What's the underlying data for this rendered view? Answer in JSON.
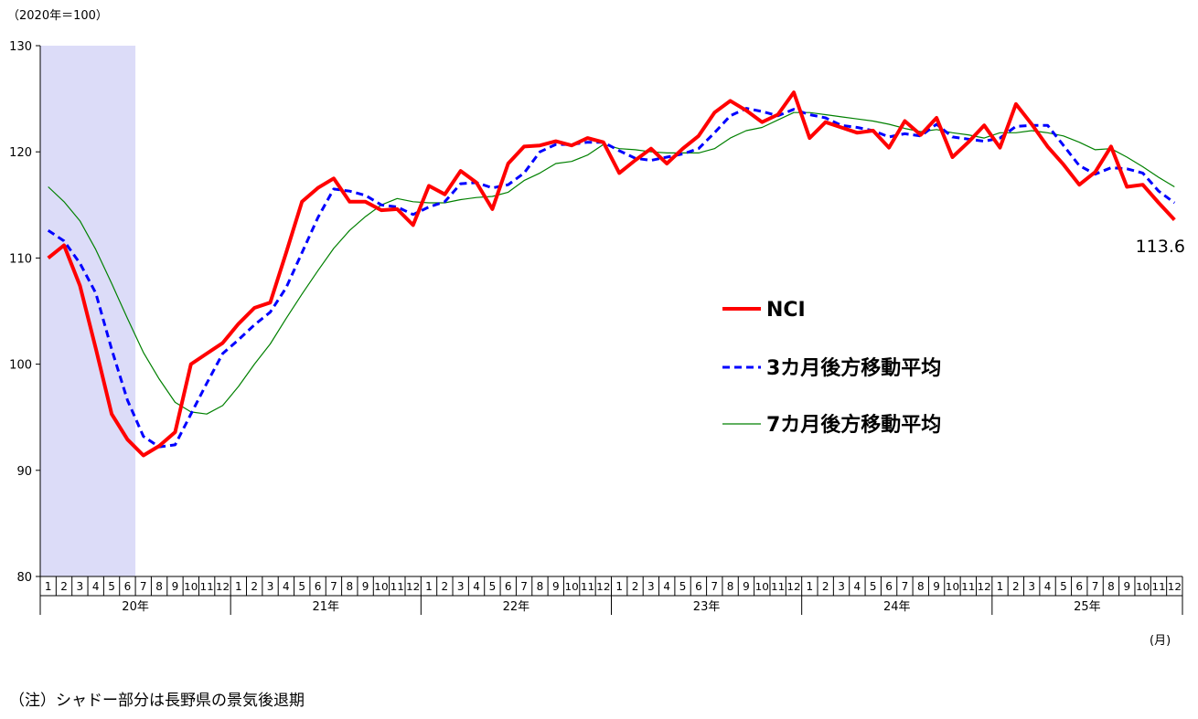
{
  "chart_data": {
    "type": "line",
    "y_unit_label": "（2020年＝100）",
    "x_unit_label": "(月)",
    "note": "（注）シャドー部分は長野県の景気後退期",
    "ylim": [
      80,
      130
    ],
    "yticks": [
      80,
      90,
      100,
      110,
      120,
      130
    ],
    "grid": false,
    "legend_position": "center-right",
    "years": [
      "20年",
      "21年",
      "22年",
      "23年",
      "24年",
      "25年"
    ],
    "months": [
      "1",
      "2",
      "3",
      "4",
      "5",
      "6",
      "7",
      "8",
      "9",
      "10",
      "11",
      "12"
    ],
    "shaded_period": {
      "from": "20年1",
      "to": "20年6"
    },
    "colors": {
      "nci": "#ff0000",
      "ma3": "#0000ff",
      "ma7": "#008000",
      "shade": "#dcdcf8"
    },
    "last_value_label": "113.6",
    "series": [
      {
        "key": "nci",
        "name": "NCI",
        "style": "solid-thick",
        "values": [
          110.0,
          111.2,
          107.4,
          101.5,
          95.3,
          92.9,
          91.4,
          92.3,
          93.6,
          100.0,
          101.0,
          102.0,
          103.8,
          105.3,
          105.8,
          110.5,
          115.3,
          116.6,
          117.5,
          115.3,
          115.3,
          114.5,
          114.6,
          113.1,
          116.8,
          116.0,
          118.2,
          117.1,
          114.6,
          118.9,
          120.5,
          120.6,
          121.0,
          120.6,
          121.3,
          120.9,
          118.0,
          119.2,
          120.3,
          118.9,
          120.3,
          121.5,
          123.7,
          124.8,
          123.9,
          122.8,
          123.5,
          125.6,
          121.3,
          122.8,
          122.3,
          121.8,
          122.0,
          120.4,
          122.9,
          121.6,
          123.2,
          119.5,
          120.9,
          122.5,
          120.4,
          124.5,
          122.6,
          120.5,
          118.8,
          116.9,
          118.1,
          120.5,
          116.7,
          116.9,
          115.2,
          113.6
        ]
      },
      {
        "key": "ma3",
        "name": "3カ月後方移動平均",
        "style": "dashed",
        "values": [
          112.6,
          111.6,
          109.5,
          106.7,
          101.4,
          96.6,
          93.2,
          92.2,
          92.4,
          95.3,
          98.2,
          101.0,
          102.3,
          103.7,
          104.9,
          107.2,
          110.5,
          113.8,
          116.5,
          116.3,
          115.9,
          115.0,
          114.8,
          114.1,
          114.8,
          115.3,
          117.0,
          117.1,
          116.6,
          116.9,
          118.0,
          120.0,
          120.7,
          120.7,
          120.9,
          120.9,
          120.1,
          119.4,
          119.2,
          119.5,
          119.8,
          120.3,
          121.8,
          123.4,
          124.1,
          123.8,
          123.4,
          124.0,
          123.5,
          123.2,
          122.5,
          122.3,
          122.0,
          121.4,
          121.7,
          121.5,
          122.6,
          121.4,
          121.2,
          121.0,
          121.3,
          122.4,
          122.5,
          122.5,
          120.6,
          118.7,
          117.9,
          118.5,
          118.4,
          118.0,
          116.3,
          115.2
        ]
      },
      {
        "key": "ma7",
        "name": "7カ月後方移動平均",
        "style": "thin",
        "values": [
          116.7,
          115.3,
          113.5,
          110.8,
          107.6,
          104.3,
          101.1,
          98.6,
          96.4,
          95.5,
          95.3,
          96.1,
          97.9,
          100.0,
          101.9,
          104.3,
          106.6,
          108.8,
          110.9,
          112.6,
          113.9,
          115.0,
          115.6,
          115.3,
          115.2,
          115.2,
          115.5,
          115.7,
          115.8,
          116.2,
          117.3,
          118.0,
          118.9,
          119.1,
          119.7,
          120.7,
          120.3,
          120.2,
          120.0,
          119.9,
          119.9,
          119.9,
          120.3,
          121.3,
          122.0,
          122.3,
          123.0,
          123.7,
          123.7,
          123.5,
          123.3,
          123.1,
          122.9,
          122.6,
          122.2,
          121.9,
          122.1,
          121.8,
          121.6,
          121.3,
          121.8,
          121.8,
          122.0,
          121.8,
          121.5,
          120.9,
          120.2,
          120.3,
          119.5,
          118.6,
          117.6,
          116.7
        ]
      }
    ]
  }
}
